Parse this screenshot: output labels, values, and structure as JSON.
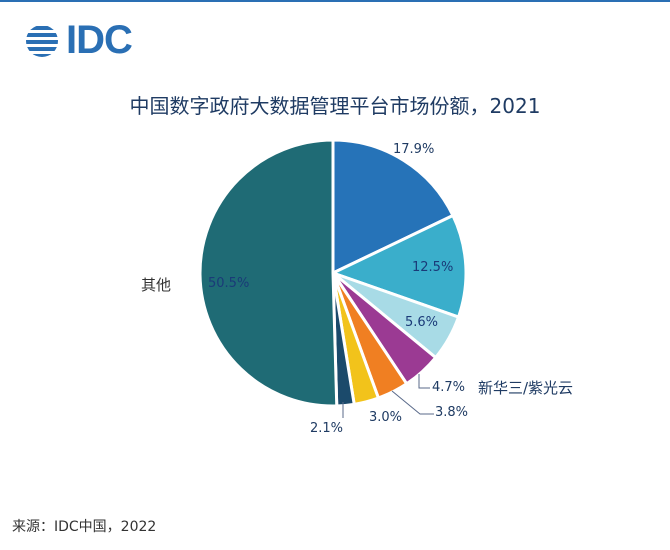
{
  "logo": {
    "text": "IDC"
  },
  "chart_data": {
    "type": "pie",
    "title": "中国数字政府大数据管理平台市场份额，2021",
    "start": "12 o'clock, clockwise",
    "slices": [
      {
        "label": "",
        "value": 17.9,
        "value_label": "17.9%",
        "color": "#2673b8"
      },
      {
        "label": "",
        "value": 12.5,
        "value_label": "12.5%",
        "color": "#3aaecb"
      },
      {
        "label": "",
        "value": 5.6,
        "value_label": "5.6%",
        "color": "#a8dbe6"
      },
      {
        "label": "新华三/紫光云",
        "value": 4.7,
        "value_label": "4.7%",
        "color": "#9b3a93"
      },
      {
        "label": "",
        "value": 3.8,
        "value_label": "3.8%",
        "color": "#f07f22"
      },
      {
        "label": "",
        "value": 3.0,
        "value_label": "3.0%",
        "color": "#f2c31b"
      },
      {
        "label": "",
        "value": 2.1,
        "value_label": "2.1%",
        "color": "#1b4a6b"
      },
      {
        "label": "其他",
        "value": 50.5,
        "value_label": "50.5%",
        "color": "#1f6b75"
      }
    ]
  },
  "source": "来源：IDC中国，2022"
}
